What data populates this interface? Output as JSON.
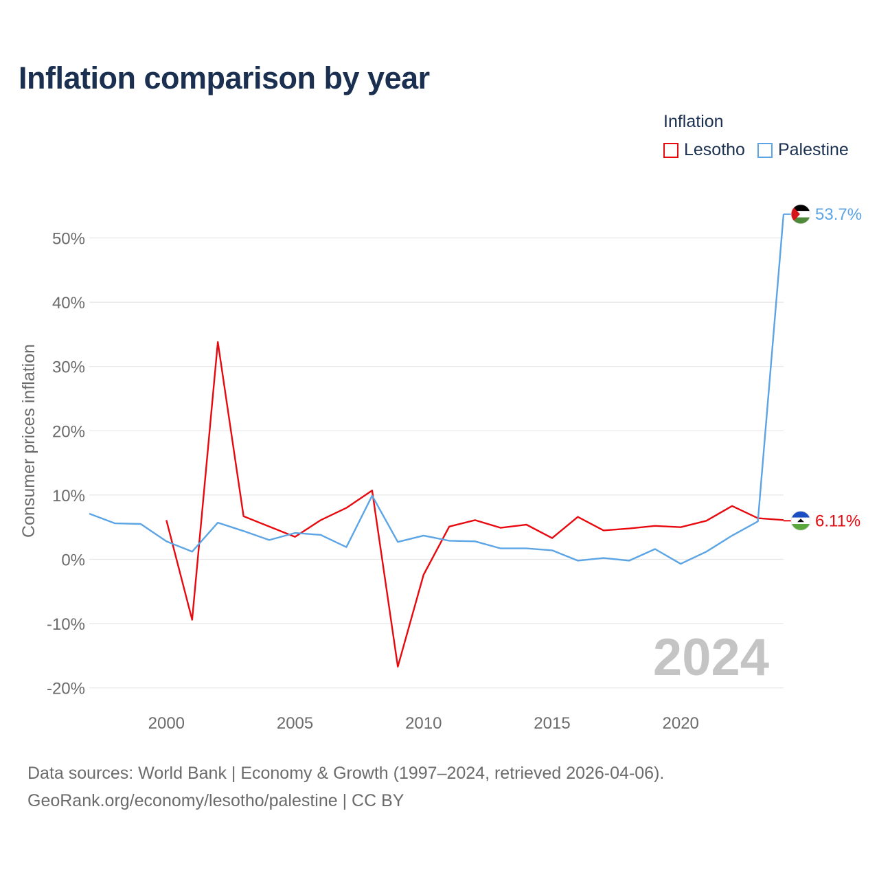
{
  "header": {
    "title": "Inflation comparison by year"
  },
  "legend": {
    "title": "Inflation",
    "items": [
      {
        "label": "Lesotho",
        "color": "#e8090f"
      },
      {
        "label": "Palestine",
        "color": "#5ba4e5"
      }
    ]
  },
  "footer": {
    "line1": "Data sources: World Bank | Economy & Growth (1997–2024, retrieved 2026-04-06).",
    "line2": "GeoRank.org/economy/lesotho/palestine | CC BY"
  },
  "chart_data": {
    "type": "line",
    "title": "Inflation comparison by year",
    "xlabel": "",
    "ylabel": "Consumer prices inflation",
    "xlim": [
      1997,
      2024
    ],
    "ylim": [
      -20,
      56
    ],
    "x_ticks": [
      2000,
      2005,
      2010,
      2015,
      2020
    ],
    "y_ticks": [
      -20,
      -10,
      0,
      10,
      20,
      30,
      40,
      50
    ],
    "y_tick_labels": [
      "-20%",
      "-10%",
      "0%",
      "10%",
      "20%",
      "30%",
      "40%",
      "50%"
    ],
    "watermark_year": "2024",
    "grid": true,
    "legend_position": "top-right",
    "series": [
      {
        "name": "Lesotho",
        "color": "#e8090f",
        "end_label": "6.11%",
        "flag": "lesotho",
        "x": [
          2000,
          2001,
          2002,
          2003,
          2004,
          2005,
          2006,
          2007,
          2008,
          2009,
          2010,
          2011,
          2012,
          2013,
          2014,
          2015,
          2016,
          2017,
          2018,
          2019,
          2020,
          2021,
          2022,
          2023,
          2024
        ],
        "values": [
          6.1,
          -9.4,
          33.8,
          6.7,
          5.1,
          3.5,
          6.1,
          8.0,
          10.7,
          -16.7,
          -2.4,
          5.1,
          6.1,
          4.9,
          5.4,
          3.3,
          6.6,
          4.5,
          4.8,
          5.2,
          5.0,
          6.0,
          8.3,
          6.4,
          6.11
        ]
      },
      {
        "name": "Palestine",
        "color": "#5ba4e5",
        "end_label": "53.7%",
        "flag": "palestine",
        "x": [
          1997,
          1998,
          1999,
          2000,
          2001,
          2002,
          2003,
          2004,
          2005,
          2006,
          2007,
          2008,
          2009,
          2010,
          2011,
          2012,
          2013,
          2014,
          2015,
          2016,
          2017,
          2018,
          2019,
          2020,
          2021,
          2022,
          2023,
          2024
        ],
        "values": [
          7.1,
          5.6,
          5.5,
          2.8,
          1.2,
          5.7,
          4.4,
          3.0,
          4.1,
          3.8,
          1.9,
          9.9,
          2.7,
          3.7,
          2.9,
          2.8,
          1.7,
          1.7,
          1.4,
          -0.2,
          0.2,
          -0.2,
          1.6,
          -0.7,
          1.2,
          3.7,
          5.9,
          53.7
        ]
      }
    ]
  }
}
